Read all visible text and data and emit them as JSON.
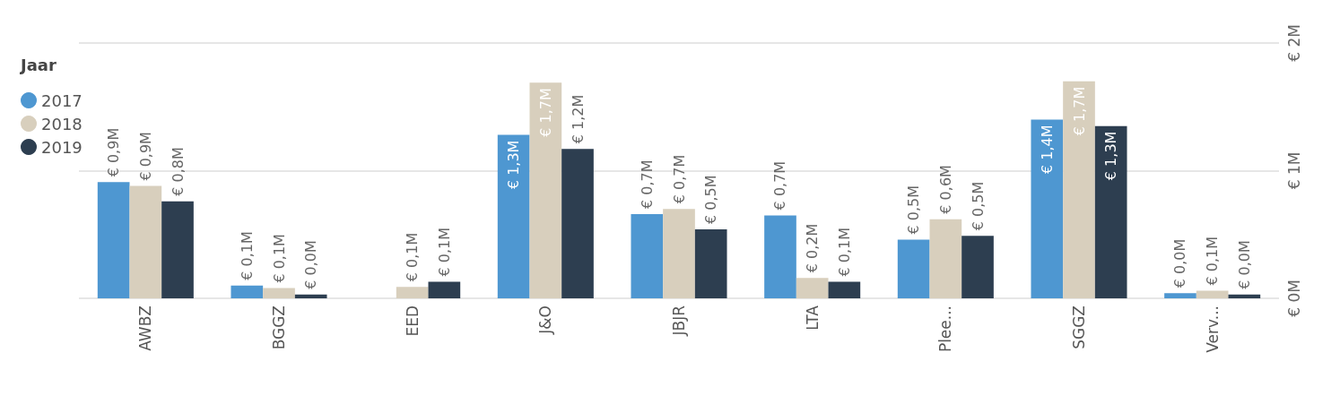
{
  "chart_data": {
    "type": "bar",
    "legend_title": "Jaar",
    "legend": "left",
    "categories": [
      "AWBZ",
      "BGGZ",
      "EED",
      "J&O",
      "JBJR",
      "LTA",
      "Plee...",
      "SGGZ",
      "Verv..."
    ],
    "series": [
      {
        "name": "2017",
        "color": "#4e97d1",
        "values": [
          0.91,
          0.1,
          null,
          1.28,
          0.66,
          0.65,
          0.46,
          1.4,
          0.04
        ],
        "value_labels": [
          "€ 0,9M",
          "€ 0,1M",
          null,
          "€ 1,3M",
          "€ 0,7M",
          "€ 0,7M",
          "€ 0,5M",
          "€ 1,4M",
          "€ 0,0M"
        ]
      },
      {
        "name": "2018",
        "color": "#d8cfbd",
        "values": [
          0.88,
          0.08,
          0.09,
          1.69,
          0.7,
          0.16,
          0.62,
          1.7,
          0.06
        ],
        "value_labels": [
          "€ 0,9M",
          "€ 0,1M",
          "€ 0,1M",
          "€ 1,7M",
          "€ 0,7M",
          "€ 0,2M",
          "€ 0,6M",
          "€ 1,7M",
          "€ 0,1M"
        ]
      },
      {
        "name": "2019",
        "color": "#2d3e50",
        "values": [
          0.76,
          0.03,
          0.13,
          1.17,
          0.54,
          0.13,
          0.49,
          1.35,
          0.03
        ],
        "value_labels": [
          "€ 0,8M",
          "€ 0,0M",
          "€ 0,1M",
          "€ 1,2M",
          "€ 0,5M",
          "€ 0,1M",
          "€ 0,5M",
          "€ 1,3M",
          "€ 0,0M"
        ]
      }
    ],
    "ylim": [
      0,
      2
    ],
    "yticks": [
      {
        "value": 0,
        "label": "€ 0M"
      },
      {
        "value": 1,
        "label": "€ 1M"
      },
      {
        "value": 2,
        "label": "€ 2M"
      }
    ],
    "grid": "y"
  }
}
